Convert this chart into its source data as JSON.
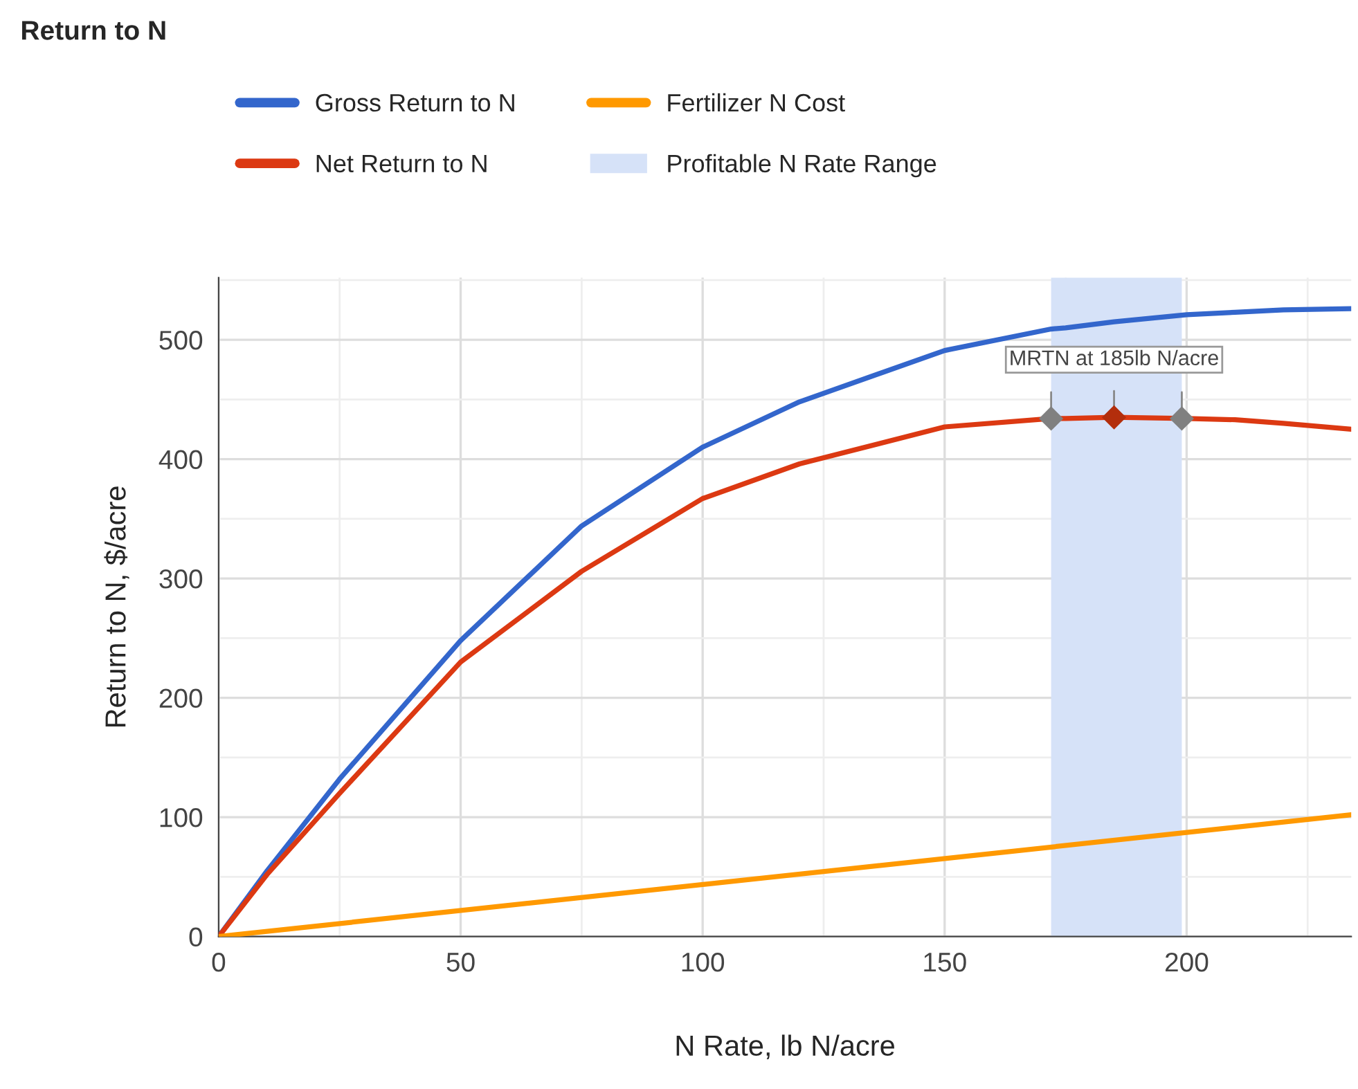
{
  "chart_data": {
    "type": "line",
    "title": "Return to N",
    "xlabel": "N Rate, lb N/acre",
    "ylabel": "Return to N, $/acre",
    "xlim": [
      0,
      234
    ],
    "xticks": [
      0,
      50,
      100,
      150,
      200
    ],
    "ylim": [
      0,
      552
    ],
    "yticks": [
      0,
      100,
      200,
      300,
      400,
      500
    ],
    "grid": true,
    "legend": "top",
    "marker": "none",
    "line_style": "solid",
    "series": [
      {
        "name": "Gross Return to N",
        "color": "#3366cc",
        "x": [
          0,
          10,
          25,
          50,
          75,
          100,
          120,
          150,
          172,
          175,
          185,
          200,
          210,
          220,
          234
        ],
        "values": [
          0,
          55,
          132,
          248,
          344,
          410,
          448,
          491,
          509,
          510,
          515,
          521,
          523,
          525,
          526
        ]
      },
      {
        "name": "Net Return to N",
        "color": "#dc3912",
        "x": [
          0,
          10,
          25,
          50,
          75,
          100,
          120,
          150,
          172,
          175,
          185,
          200,
          210,
          220,
          234
        ],
        "values": [
          0,
          52,
          120,
          230,
          306,
          367,
          396,
          427,
          434,
          434,
          435,
          434,
          433,
          430,
          425
        ]
      },
      {
        "name": "Fertilizer N Cost",
        "color": "#ff9900",
        "x": [
          0,
          234
        ],
        "values": [
          0,
          102
        ]
      },
      {
        "type": "scatter",
        "marker": "diamond",
        "x": [
          172,
          185,
          199
        ],
        "values": [
          434,
          435,
          434
        ],
        "colors": [
          "#808080",
          "#b32e0c",
          "#808080"
        ]
      }
    ],
    "bands": [
      {
        "axis": "x",
        "from": 172,
        "to": 199,
        "label": "Profitable N Rate Range",
        "color": "#d6e2f8"
      }
    ],
    "annotations": [
      {
        "text": "MRTN at 185lb N/acre",
        "x": 185,
        "y": 435
      }
    ]
  }
}
